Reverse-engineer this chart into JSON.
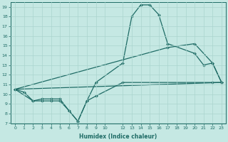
{
  "xlabel": "Humidex (Indice chaleur)",
  "bg_color": "#c5e8e3",
  "line_color": "#1e6b65",
  "grid_color": "#aad4ce",
  "ylim": [
    7,
    19.5
  ],
  "xlim": [
    -0.5,
    23.5
  ],
  "yticks": [
    7,
    8,
    9,
    10,
    11,
    12,
    13,
    14,
    15,
    16,
    17,
    18,
    19
  ],
  "xticks": [
    0,
    1,
    2,
    3,
    4,
    5,
    6,
    7,
    8,
    9,
    10,
    12,
    13,
    14,
    15,
    16,
    17,
    18,
    19,
    20,
    21,
    22,
    23
  ],
  "xtick_labels": [
    "0",
    "1",
    "2",
    "3",
    "4",
    "5",
    "6",
    "7",
    "8",
    "9",
    "10",
    "12",
    "13",
    "14",
    "15",
    "16",
    "17",
    "18",
    "19",
    "20",
    "21",
    "22",
    "23"
  ],
  "line1": {
    "x": [
      0,
      1,
      2,
      3,
      4,
      5,
      6,
      7,
      8,
      9,
      12,
      13,
      14,
      15,
      16,
      17,
      20,
      21,
      22,
      23
    ],
    "y": [
      10.5,
      10.2,
      9.3,
      9.3,
      9.3,
      9.3,
      8.3,
      7.2,
      9.3,
      11.2,
      13.2,
      18.0,
      19.2,
      19.2,
      18.2,
      15.2,
      14.2,
      13.0,
      13.2,
      11.2
    ],
    "has_markers": true
  },
  "line2": {
    "x": [
      0,
      2,
      3,
      4,
      5,
      6,
      7,
      8,
      9,
      12,
      22,
      23
    ],
    "y": [
      10.5,
      9.3,
      9.5,
      9.5,
      9.5,
      8.3,
      7.2,
      9.3,
      9.8,
      11.2,
      11.2,
      11.2
    ],
    "has_markers": true
  },
  "line3": {
    "x": [
      0,
      17,
      20,
      22,
      23
    ],
    "y": [
      10.5,
      14.8,
      15.2,
      13.2,
      11.2
    ],
    "has_markers": true
  },
  "line4": {
    "x": [
      0,
      23
    ],
    "y": [
      10.5,
      11.2
    ],
    "has_markers": false
  }
}
